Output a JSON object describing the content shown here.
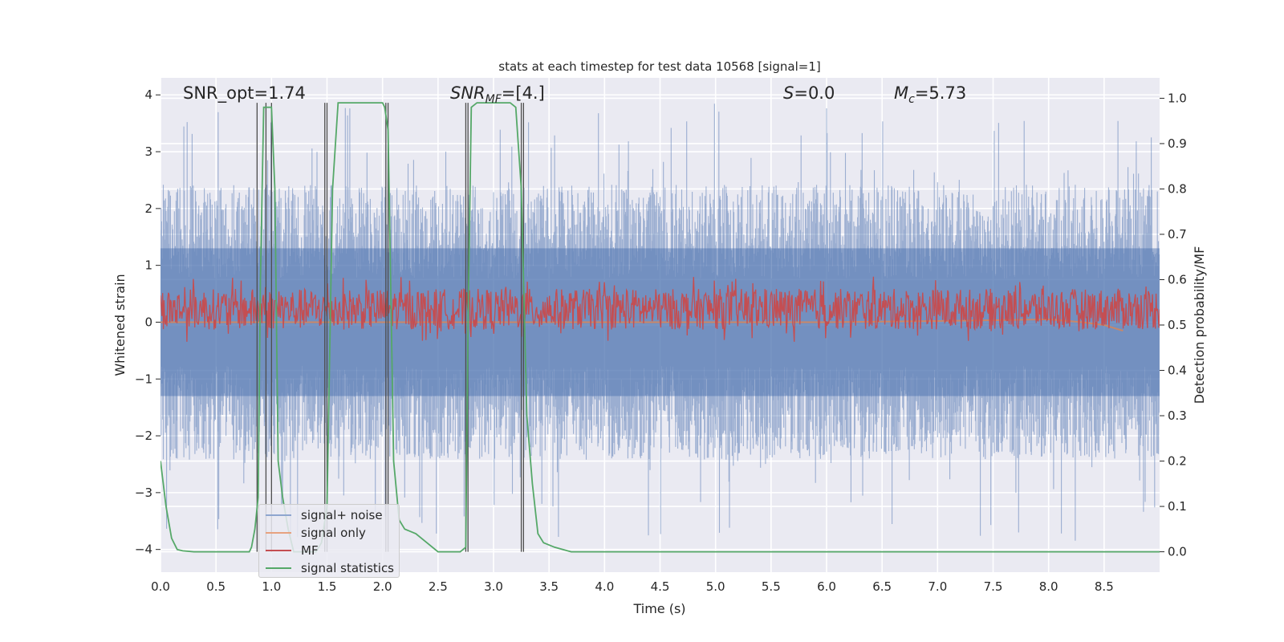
{
  "chart_data": {
    "type": "line",
    "title": "stats at each timestep for test data 10568 [signal=1]",
    "xlabel": "Time (s)",
    "ylabel": "Whitened strain",
    "y2label": "Detection probability/MF",
    "xlim": [
      0.0,
      9.0
    ],
    "ylim": [
      -4.4,
      4.3
    ],
    "y2lim": [
      -0.045,
      1.045
    ],
    "x_ticks": [
      "0.0",
      "0.5",
      "1.0",
      "1.5",
      "2.0",
      "2.5",
      "3.0",
      "3.5",
      "4.0",
      "4.5",
      "5.0",
      "5.5",
      "6.0",
      "6.5",
      "7.0",
      "7.5",
      "8.0",
      "8.5"
    ],
    "y_ticks": [
      "4",
      "3",
      "2",
      "1",
      "0",
      "−1",
      "−2",
      "−3",
      "−4"
    ],
    "y2_ticks": [
      "1.0",
      "0.9",
      "0.8",
      "0.7",
      "0.6",
      "0.5",
      "0.4",
      "0.3",
      "0.2",
      "0.1",
      "0.0"
    ],
    "grid": true,
    "legend_position": "lower-left",
    "annotations": {
      "snr_opt": "SNR_opt=1.74",
      "snr_mf_label": "SNR",
      "snr_mf_sub": "MF",
      "snr_mf_value": "=[4.]",
      "s_label": "S",
      "s_value": "=0.0",
      "mc_label": "M",
      "mc_sub": "c",
      "mc_value": "=5.73"
    },
    "series": [
      {
        "name": "signal+ noise",
        "color": "#4c72b0",
        "axis": "left",
        "style": "dense noise",
        "amplitude_typical": 2.2,
        "amplitude_max": 4.0
      },
      {
        "name": "signal only",
        "color": "#dd8452",
        "axis": "left",
        "x": [
          0.0,
          6.0,
          7.0,
          8.0,
          8.3,
          8.5,
          8.67
        ],
        "y": [
          0.0,
          0.0,
          0.02,
          0.05,
          0.0,
          -0.05,
          -0.15
        ]
      },
      {
        "name": "MF",
        "color": "#c44e52",
        "axis": "right",
        "style": "noisy band",
        "center": 0.535,
        "spread": 0.045
      },
      {
        "name": "signal statistics",
        "color": "#55a868",
        "axis": "right",
        "x": [
          0.0,
          0.05,
          0.1,
          0.15,
          0.2,
          0.3,
          0.5,
          0.8,
          0.82,
          0.85,
          0.88,
          0.9,
          0.93,
          0.96,
          1.0,
          1.03,
          1.06,
          1.1,
          1.15,
          1.2,
          1.3,
          1.4,
          1.45,
          1.5,
          1.55,
          1.6,
          1.7,
          1.9,
          2.0,
          2.02,
          2.05,
          2.08,
          2.1,
          2.15,
          2.2,
          2.3,
          2.4,
          2.5,
          2.7,
          2.75,
          2.77,
          2.8,
          2.85,
          2.9,
          3.0,
          3.15,
          3.2,
          3.25,
          3.3,
          3.35,
          3.4,
          3.45,
          3.55,
          3.7,
          4.0,
          6.0,
          9.0
        ],
        "y": [
          0.2,
          0.1,
          0.03,
          0.005,
          0.002,
          0.0,
          0.0,
          0.0,
          0.01,
          0.05,
          0.12,
          0.6,
          0.98,
          0.98,
          0.98,
          0.8,
          0.2,
          0.12,
          0.05,
          0.0,
          0.0,
          0.0,
          0.02,
          0.1,
          0.8,
          0.99,
          0.99,
          0.99,
          0.99,
          0.98,
          0.93,
          0.5,
          0.2,
          0.07,
          0.05,
          0.04,
          0.02,
          0.0,
          0.0,
          0.01,
          0.5,
          0.98,
          0.99,
          0.99,
          0.99,
          0.99,
          0.98,
          0.8,
          0.3,
          0.15,
          0.04,
          0.02,
          0.01,
          0.0,
          0.0,
          0.0,
          0.0
        ]
      },
      {
        "name": "",
        "color": "#4d4d4d",
        "axis": "right",
        "style": "vertical markers",
        "x": [
          0.87,
          0.95,
          1.0,
          1.48,
          1.5,
          2.03,
          2.05,
          2.75,
          2.77,
          3.25,
          3.27
        ]
      }
    ]
  }
}
